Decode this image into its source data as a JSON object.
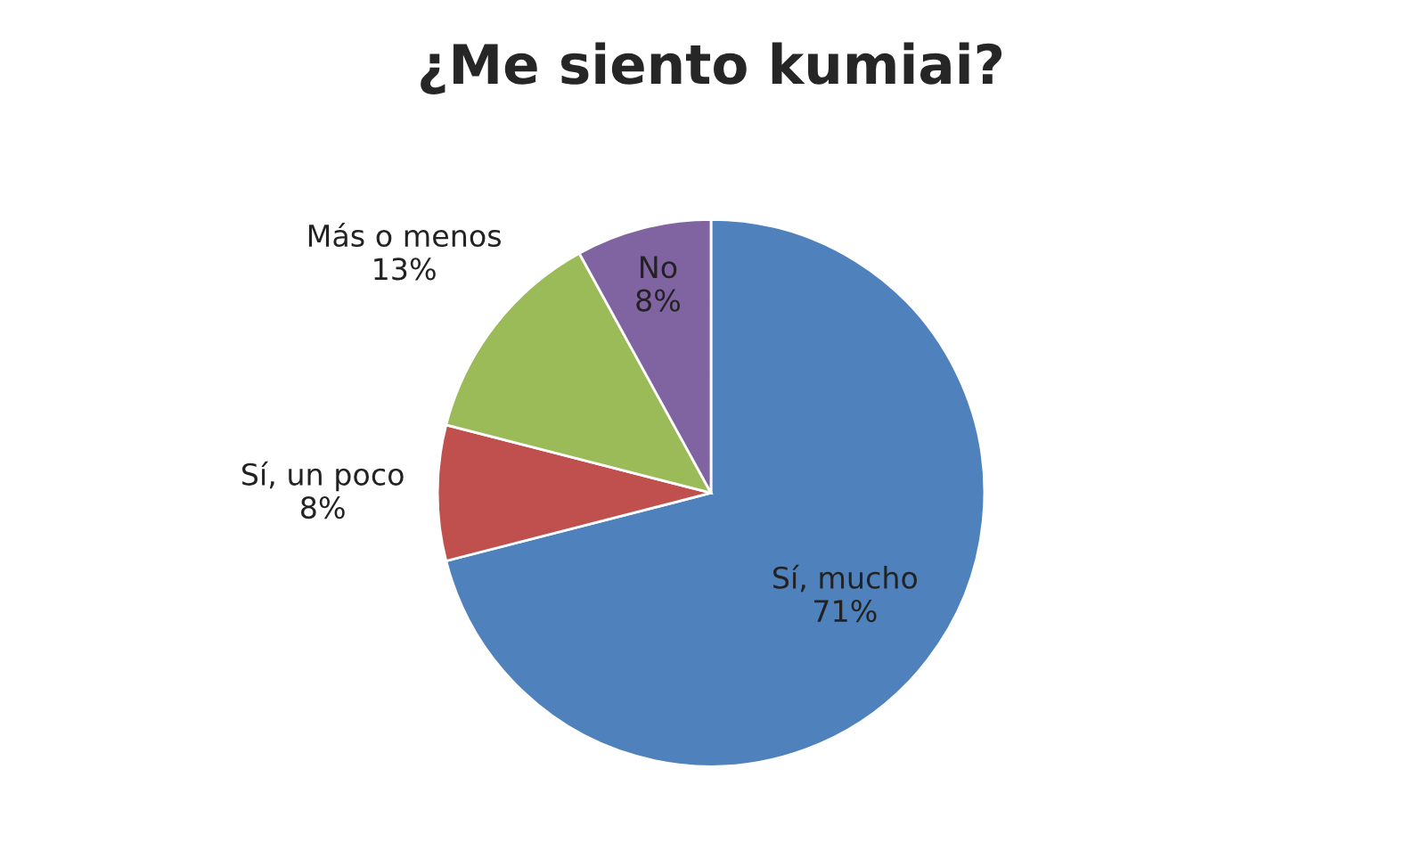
{
  "chart_data": {
    "type": "pie",
    "title": "¿Me siento kumiai?",
    "categories": [
      "Sí, mucho",
      "Sí, un poco",
      "Más o menos",
      "No"
    ],
    "values": [
      71,
      8,
      13,
      8
    ],
    "value_labels": [
      "71%",
      "8%",
      "13%",
      "8%"
    ],
    "colors": [
      "#4f81bd",
      "#c0504d",
      "#9bbb59",
      "#8064a2"
    ],
    "legend": false
  }
}
